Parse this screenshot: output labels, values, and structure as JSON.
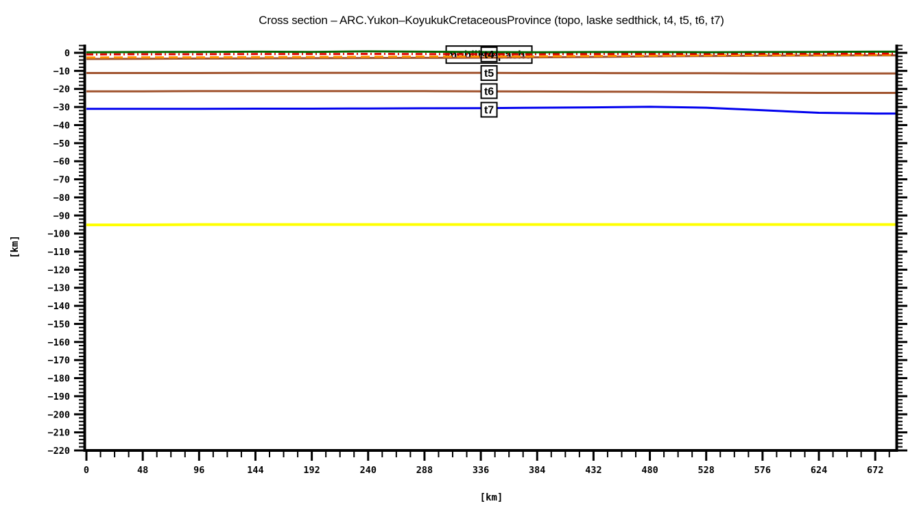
{
  "title": "Cross section – ARC.Yukon–KoyukukCretaceousProvince (topo, laske sedthick, t4, t5, t6, t7)",
  "x_axis": {
    "label": "[km]",
    "range": [
      0,
      690
    ],
    "tick_values": [
      0,
      48,
      96,
      144,
      192,
      240,
      288,
      336,
      384,
      432,
      480,
      528,
      576,
      624,
      672
    ],
    "tick_labels": [
      "0",
      "48",
      "96",
      "144",
      "192",
      "240",
      "288",
      "336",
      "384",
      "432",
      "480",
      "528",
      "576",
      "624",
      "672"
    ],
    "minor_step": 12
  },
  "y_axis": {
    "label": "[km]",
    "range": [
      -220,
      4.5
    ],
    "tick_values": [
      0,
      -10,
      -20,
      -30,
      -40,
      -50,
      -60,
      -70,
      -80,
      -90,
      -100,
      -110,
      -120,
      -130,
      -140,
      -150,
      -160,
      -170,
      -180,
      -190,
      -200,
      -210,
      -220
    ],
    "tick_labels": [
      "0",
      "−10",
      "−20",
      "−30",
      "−40",
      "−50",
      "−60",
      "−70",
      "−80",
      "−90",
      "−100",
      "−110",
      "−120",
      "−130",
      "−140",
      "−150",
      "−160",
      "−170",
      "−180",
      "−190",
      "−200",
      "−210",
      "−220"
    ],
    "minor_step": 2
  },
  "annotations": {
    "line_label_box": {
      "text": "mobilistepachs",
      "x_km": 343,
      "y_km": -1.0,
      "w": 125,
      "h": 25
    },
    "tags": [
      {
        "text": "t4",
        "x_km": 343,
        "y_km": -0.9,
        "filled": false
      },
      {
        "text": "t5",
        "x_km": 343,
        "y_km": -11.2,
        "filled": true
      },
      {
        "text": "t6",
        "x_km": 343,
        "y_km": -21.2,
        "filled": true
      },
      {
        "text": "t7",
        "x_km": 343,
        "y_km": -31.5,
        "filled": true
      }
    ]
  },
  "chart_data": {
    "type": "line",
    "title": "Cross section – ARC.Yukon–KoyukukCretaceousProvince (topo, laske sedthick, t4, t5, t6, t7)",
    "xlabel": "[km]",
    "ylabel": "[km]",
    "xlim": [
      0,
      690
    ],
    "ylim": [
      -220,
      4.5
    ],
    "grid": false,
    "x": [
      0,
      48,
      96,
      144,
      192,
      240,
      288,
      336,
      384,
      432,
      480,
      528,
      576,
      624,
      672,
      690
    ],
    "series": [
      {
        "name": "base-yellow",
        "color": "#ffff00",
        "width": 4,
        "dash": "",
        "values": [
          -95.2,
          -95.2,
          -95.0,
          -95.0,
          -95.0,
          -95.0,
          -95.0,
          -95.0,
          -95.0,
          -95.0,
          -95.0,
          -95.0,
          -95.0,
          -95.0,
          -95.0,
          -95.0
        ]
      },
      {
        "name": "t7",
        "color": "#0000ee",
        "width": 3,
        "dash": "",
        "values": [
          -31.0,
          -31.0,
          -31.0,
          -30.9,
          -30.9,
          -30.8,
          -30.7,
          -30.6,
          -30.4,
          -30.2,
          -29.9,
          -30.4,
          -31.8,
          -33.2,
          -33.6,
          -33.6
        ]
      },
      {
        "name": "t6",
        "color": "#a0522d",
        "width": 3,
        "dash": "",
        "values": [
          -21.3,
          -21.3,
          -21.2,
          -21.2,
          -21.2,
          -21.2,
          -21.2,
          -21.3,
          -21.4,
          -21.5,
          -21.6,
          -21.8,
          -22.0,
          -22.2,
          -22.2,
          -22.2
        ]
      },
      {
        "name": "t5",
        "color": "#a0522d",
        "width": 3,
        "dash": "",
        "values": [
          -11.2,
          -11.2,
          -11.2,
          -11.1,
          -11.1,
          -11.1,
          -11.1,
          -11.1,
          -11.2,
          -11.2,
          -11.3,
          -11.3,
          -11.4,
          -11.4,
          -11.4,
          -11.4
        ]
      },
      {
        "name": "t4",
        "color": "#a0522d",
        "width": 3,
        "dash": "",
        "values": [
          -3.4,
          -3.3,
          -3.2,
          -3.1,
          -3.0,
          -2.9,
          -2.8,
          -2.7,
          -2.5,
          -2.3,
          -2.0,
          -1.8,
          -1.6,
          -1.5,
          -1.4,
          -1.4
        ]
      },
      {
        "name": "laske-sedthick",
        "color": "#ff9000",
        "width": 3,
        "dash": "13 7",
        "values": [
          -2.6,
          -2.5,
          -2.5,
          -2.4,
          -2.3,
          -2.2,
          -2.1,
          -2.1,
          -2.0,
          -1.8,
          -1.6,
          -1.4,
          -1.3,
          -1.2,
          -1.1,
          -1.1
        ]
      },
      {
        "name": "mobilistepachs",
        "color": "#dd0000",
        "width": 3,
        "dash": "10 4 2 4",
        "values": [
          -0.9,
          -0.8,
          -0.8,
          -0.7,
          -0.7,
          -0.6,
          -0.7,
          -0.8,
          -0.8,
          -0.7,
          -0.6,
          -0.6,
          -0.5,
          -0.5,
          -0.4,
          -0.4
        ]
      },
      {
        "name": "topo",
        "color": "#006400",
        "width": 3,
        "dash": "",
        "values": [
          0.3,
          0.4,
          0.5,
          0.6,
          0.5,
          0.8,
          0.6,
          0.4,
          0.3,
          0.4,
          0.4,
          0.3,
          0.4,
          0.5,
          0.6,
          0.6
        ]
      }
    ],
    "legend_position": "none"
  },
  "colors": {
    "axis": "#000000",
    "background": "#ffffff"
  }
}
